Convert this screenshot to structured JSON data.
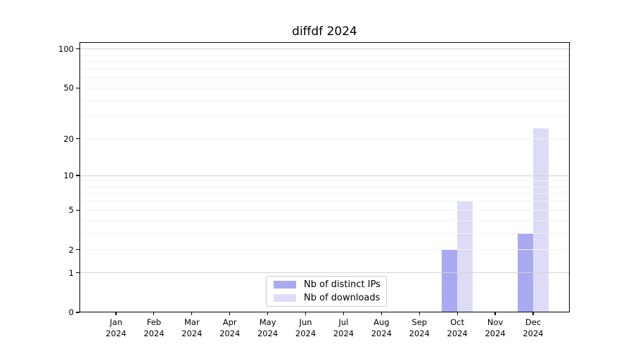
{
  "chart_data": {
    "type": "bar",
    "title": "diffdf 2024",
    "categories": [
      "Jan",
      "Feb",
      "Mar",
      "Apr",
      "May",
      "Jun",
      "Jul",
      "Aug",
      "Sep",
      "Oct",
      "Nov",
      "Dec"
    ],
    "category_year": "2024",
    "series": [
      {
        "name": "Nb of distinct IPs",
        "color": "#a9a9f1",
        "values": [
          0,
          0,
          0,
          0,
          0,
          0,
          0,
          0,
          0,
          2,
          0,
          3
        ]
      },
      {
        "name": "Nb of downloads",
        "color": "#dcdcf6",
        "values": [
          0,
          0,
          0,
          0,
          0,
          0,
          0,
          0,
          0,
          6,
          0,
          24
        ]
      }
    ],
    "xlabel": "",
    "ylabel": "",
    "yscale": "log1p",
    "ylim": [
      0,
      113
    ],
    "y_tick_labels": [
      100,
      50,
      20,
      10,
      5,
      2,
      1,
      0
    ],
    "y_major_gridlines": [
      1,
      10,
      100
    ],
    "y_minor_gridlines": [
      2,
      3,
      4,
      5,
      6,
      7,
      8,
      9,
      20,
      30,
      40,
      50,
      60,
      70,
      80,
      90
    ],
    "grid": true,
    "legend_position": "lower center"
  },
  "style": {
    "major_grid_color": "#d2d2d2",
    "minor_grid_color": "#f2f2f2",
    "spine_color": "#000000",
    "legend_border_color": "#cccccc"
  }
}
